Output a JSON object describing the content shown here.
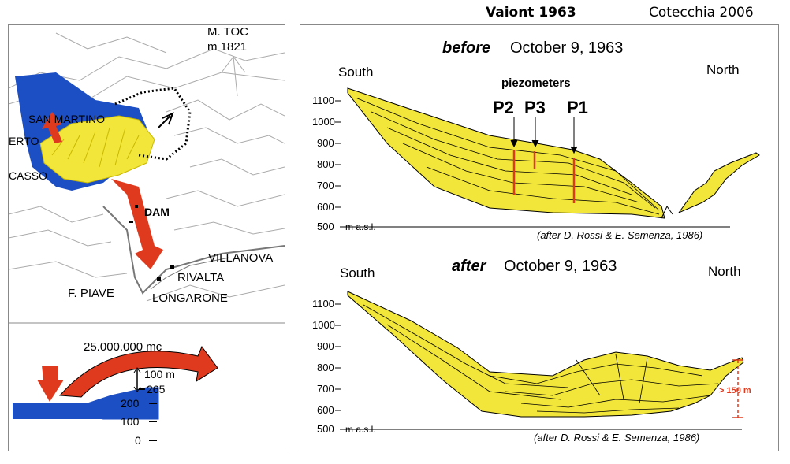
{
  "header": {
    "title": "Vaiont 1963",
    "citation": "Cotecchia 2006"
  },
  "map": {
    "peak_name": "M. TOC",
    "peak_elev": "m 1821",
    "places": {
      "san_martino": "SAN MARTINO",
      "erto": "ERTO",
      "casso": "CASSO",
      "dam": "DAM",
      "villanova": "VILLANOVA",
      "rivalta": "RIVALTA",
      "f_piave": "F. PIAVE",
      "longarone": "LONGARONE"
    },
    "colors": {
      "lake": "#1d4fc4",
      "slide": "#f2e63a",
      "flow": "#e03a1e"
    }
  },
  "wave": {
    "volume": "25.000.000 mc",
    "height": "100 m",
    "top_level": "265",
    "scale": [
      "200",
      "100",
      "0"
    ]
  },
  "before": {
    "title_bold": "before",
    "title_rest": "October 9, 1963",
    "south": "South",
    "north": "North",
    "piezo_label": "piezometers",
    "piezometers": [
      "P2",
      "P3",
      "P1"
    ],
    "y_ticks": [
      "1100",
      "1000",
      "900",
      "800",
      "700",
      "600",
      "500"
    ],
    "unit": "m a.s.l.",
    "credit": "(after D. Rossi & E. Semenza, 1986)"
  },
  "after": {
    "title_bold": "after",
    "title_rest": "October 9, 1963",
    "south": "South",
    "north": "North",
    "y_ticks": [
      "1100",
      "1000",
      "900",
      "800",
      "700",
      "600",
      "500"
    ],
    "unit": "m a.s.l.",
    "annotation": "> 150 m",
    "credit": "(after D. Rossi & E. Semenza, 1986)"
  }
}
